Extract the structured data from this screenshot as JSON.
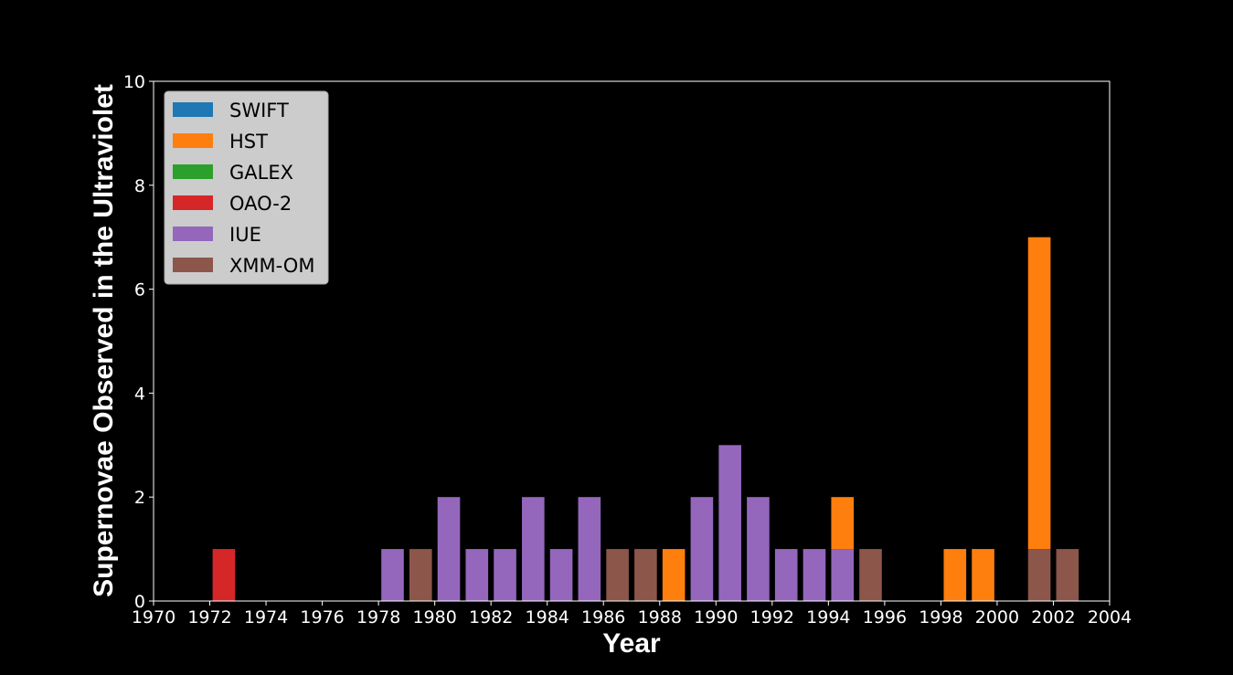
{
  "chart_data": {
    "type": "bar",
    "stacked": true,
    "xlabel": "Year",
    "ylabel": "Supernovae Observed in the Ultraviolet",
    "xlim": [
      1970,
      2004
    ],
    "ylim": [
      0,
      10
    ],
    "xticks": [
      "1970",
      "1972",
      "1974",
      "1976",
      "1978",
      "1980",
      "1982",
      "1984",
      "1986",
      "1988",
      "1990",
      "1992",
      "1994",
      "1996",
      "1998",
      "2000",
      "2002",
      "2004"
    ],
    "yticks": [
      "0",
      "2",
      "4",
      "6",
      "8",
      "10"
    ],
    "bar_width_years": 0.8,
    "grid": false,
    "legend_position": "top-left",
    "background": "#000000",
    "legend": [
      "SWIFT",
      "HST",
      "GALEX",
      "OAO-2",
      "IUE",
      "XMM-OM"
    ],
    "series": [
      {
        "name": "SWIFT",
        "color": "#1f77b4",
        "points": []
      },
      {
        "name": "HST",
        "color": "#ff7f0e",
        "points": [
          {
            "x": 1988.5,
            "y": 1,
            "base": 0
          },
          {
            "x": 1994.5,
            "y": 1,
            "base": 1
          },
          {
            "x": 1998.5,
            "y": 1,
            "base": 0
          },
          {
            "x": 1999.5,
            "y": 1,
            "base": 0
          },
          {
            "x": 2001.5,
            "y": 6,
            "base": 1
          }
        ]
      },
      {
        "name": "GALEX",
        "color": "#2ca02c",
        "points": []
      },
      {
        "name": "OAO-2",
        "color": "#d62728",
        "points": [
          {
            "x": 1972.5,
            "y": 1,
            "base": 0
          }
        ]
      },
      {
        "name": "IUE",
        "color": "#9467bd",
        "points": [
          {
            "x": 1978.5,
            "y": 1,
            "base": 0
          },
          {
            "x": 1980.5,
            "y": 2,
            "base": 0
          },
          {
            "x": 1981.5,
            "y": 1,
            "base": 0
          },
          {
            "x": 1982.5,
            "y": 1,
            "base": 0
          },
          {
            "x": 1983.5,
            "y": 2,
            "base": 0
          },
          {
            "x": 1984.5,
            "y": 1,
            "base": 0
          },
          {
            "x": 1985.5,
            "y": 2,
            "base": 0
          },
          {
            "x": 1989.5,
            "y": 2,
            "base": 0
          },
          {
            "x": 1990.5,
            "y": 3,
            "base": 0
          },
          {
            "x": 1991.5,
            "y": 2,
            "base": 0
          },
          {
            "x": 1992.5,
            "y": 1,
            "base": 0
          },
          {
            "x": 1993.5,
            "y": 1,
            "base": 0
          },
          {
            "x": 1994.5,
            "y": 1,
            "base": 0
          }
        ]
      },
      {
        "name": "XMM-OM",
        "color": "#8c564b",
        "points": [
          {
            "x": 1979.5,
            "y": 1,
            "base": 0
          },
          {
            "x": 1986.5,
            "y": 1,
            "base": 0
          },
          {
            "x": 1987.5,
            "y": 1,
            "base": 0
          },
          {
            "x": 1995.5,
            "y": 1,
            "base": 0
          },
          {
            "x": 2001.5,
            "y": 1,
            "base": 0
          },
          {
            "x": 2002.5,
            "y": 1,
            "base": 0
          }
        ]
      }
    ]
  }
}
